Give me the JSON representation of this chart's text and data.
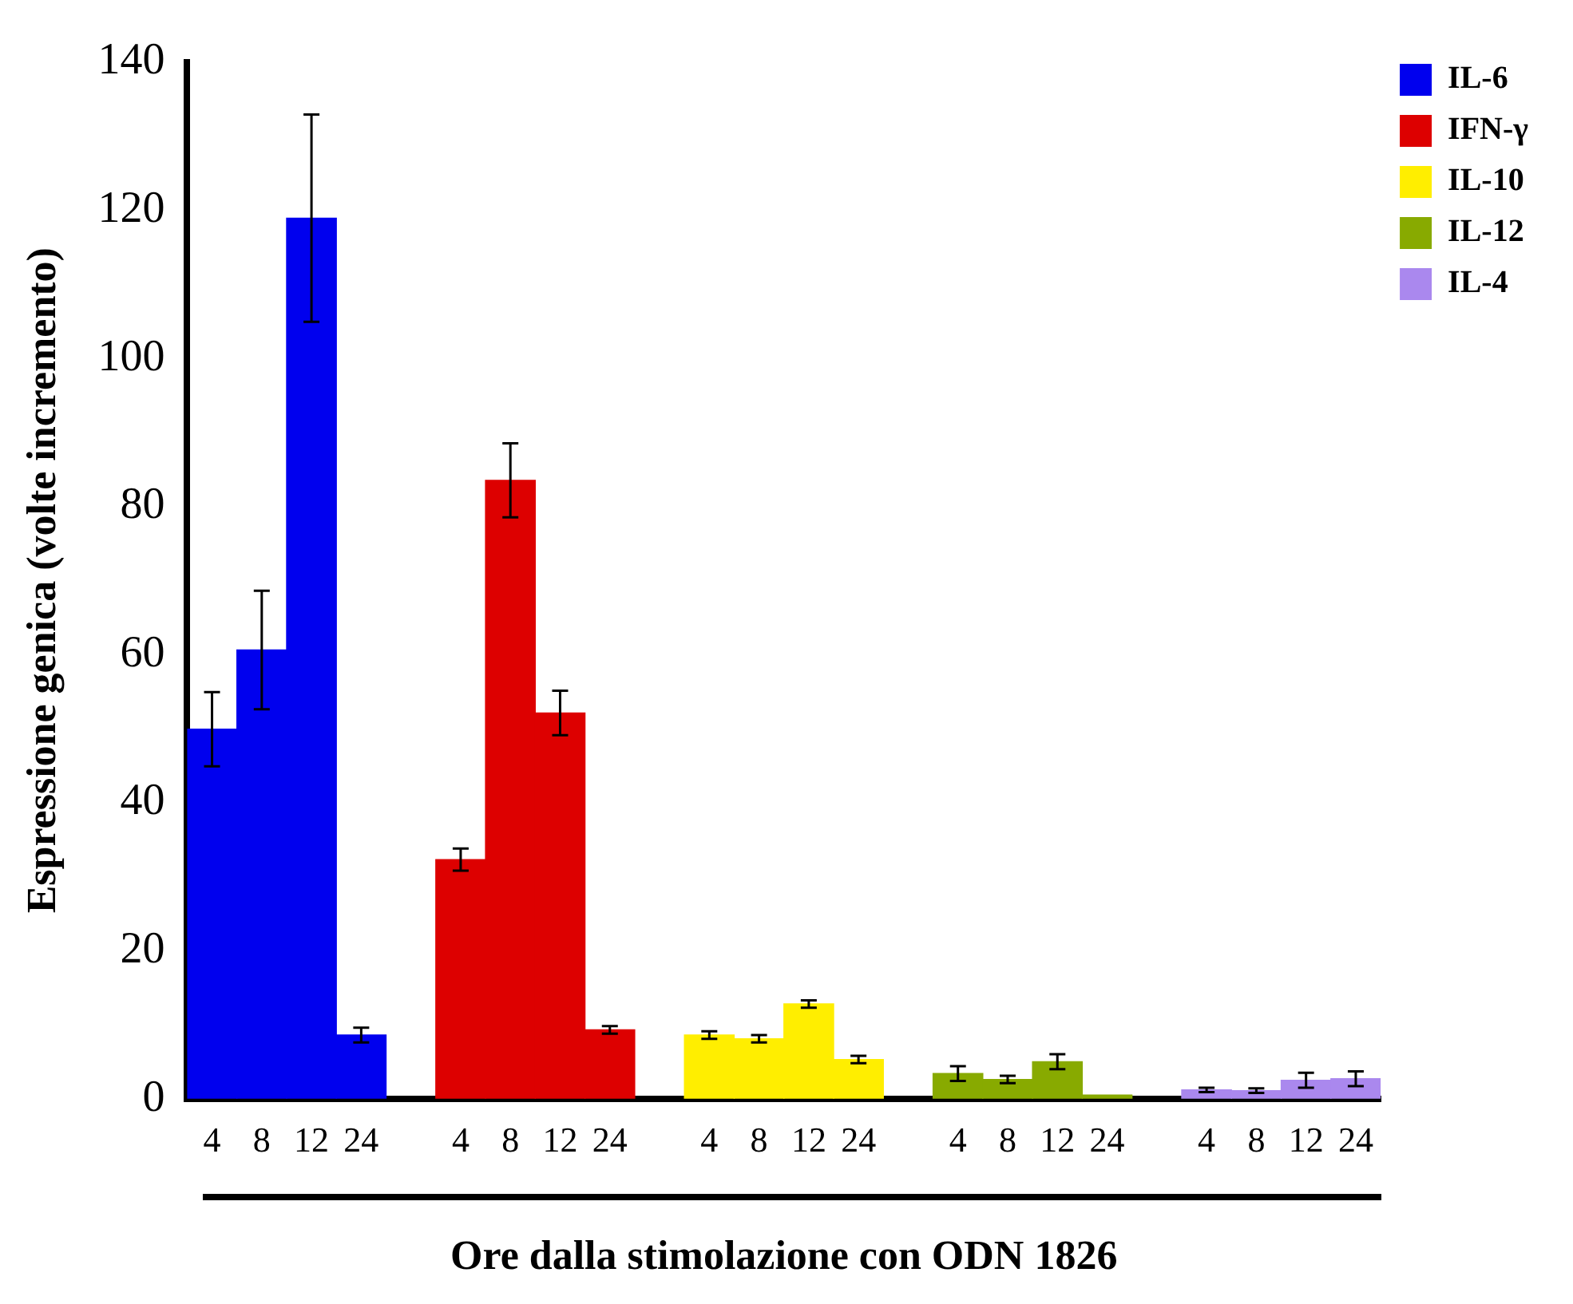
{
  "chart_data": {
    "type": "bar",
    "xlabel": "Ore dalla stimolazione con ODN 1826",
    "ylabel": "Espressione genica (volte incremento)",
    "categories": [
      "4",
      "8",
      "12",
      "24",
      null,
      "4",
      "8",
      "12",
      "24",
      null,
      "4",
      "8",
      "12",
      "24",
      null,
      "4",
      "8",
      "12",
      "24",
      null,
      "4",
      "8",
      "12",
      "24"
    ],
    "series": [
      {
        "name": "IL-6",
        "color": "#0000ee",
        "values": [
          49.9,
          60.6,
          118.9,
          8.6,
          null,
          null,
          null,
          null,
          null,
          null,
          null,
          null,
          null,
          null,
          null,
          null,
          null,
          null,
          null,
          null,
          null,
          null,
          null,
          null
        ],
        "errors": [
          5,
          8,
          14,
          1,
          null,
          null,
          null,
          null,
          null,
          null,
          null,
          null,
          null,
          null,
          null,
          null,
          null,
          null,
          null,
          null,
          null,
          null,
          null,
          null
        ]
      },
      {
        "name": "IFN-γ",
        "color": "#dd0000",
        "values": [
          null,
          null,
          null,
          null,
          null,
          32.3,
          83.5,
          52.1,
          9.3,
          null,
          null,
          null,
          null,
          null,
          null,
          null,
          null,
          null,
          null,
          null,
          null,
          null,
          null,
          null
        ],
        "errors": [
          null,
          null,
          null,
          null,
          null,
          1.5,
          5,
          3,
          0.5,
          null,
          null,
          null,
          null,
          null,
          null,
          null,
          null,
          null,
          null,
          null,
          null,
          null,
          null,
          null
        ]
      },
      {
        "name": "IL-10",
        "color": "#ffee00",
        "values": [
          null,
          null,
          null,
          null,
          null,
          null,
          null,
          null,
          null,
          null,
          8.6,
          8.1,
          12.8,
          5.3,
          null,
          null,
          null,
          null,
          null,
          null,
          null,
          null,
          null,
          null
        ],
        "errors": [
          null,
          null,
          null,
          null,
          null,
          null,
          null,
          null,
          null,
          null,
          0.5,
          0.5,
          0.5,
          0.5,
          null,
          null,
          null,
          null,
          null,
          null,
          null,
          null,
          null,
          null
        ]
      },
      {
        "name": "IL-12",
        "color": "#88aa00",
        "values": [
          null,
          null,
          null,
          null,
          null,
          null,
          null,
          null,
          null,
          null,
          null,
          null,
          null,
          null,
          null,
          3.4,
          2.6,
          5.0,
          0.5,
          null,
          null,
          null,
          null,
          null
        ],
        "errors": [
          null,
          null,
          null,
          null,
          null,
          null,
          null,
          null,
          null,
          null,
          null,
          null,
          null,
          null,
          null,
          1,
          0.5,
          1,
          null,
          null,
          null,
          null,
          null,
          null
        ]
      },
      {
        "name": "IL-4",
        "color": "#aa88ee",
        "values": [
          null,
          null,
          null,
          null,
          null,
          null,
          null,
          null,
          null,
          null,
          null,
          null,
          null,
          null,
          null,
          null,
          null,
          null,
          null,
          null,
          1.2,
          1.1,
          2.5,
          2.7
        ],
        "errors": [
          null,
          null,
          null,
          null,
          null,
          null,
          null,
          null,
          null,
          null,
          null,
          null,
          null,
          null,
          null,
          null,
          null,
          null,
          null,
          null,
          0.3,
          0.3,
          1,
          1
        ]
      }
    ],
    "ylim": [
      0,
      140
    ],
    "yticks": [
      0,
      20,
      40,
      60,
      80,
      100,
      120,
      140
    ],
    "grid": false,
    "legend": "top right"
  }
}
